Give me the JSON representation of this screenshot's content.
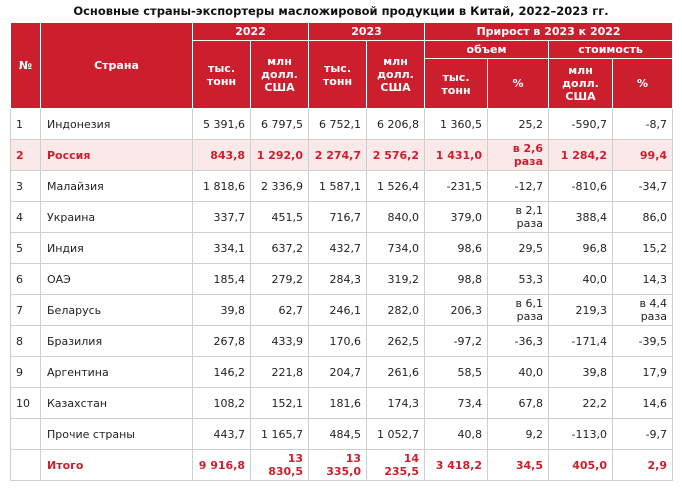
{
  "title": "Основные страны-экспортеры масложировой продукции в Китай, 2022–2023 гг.",
  "header": {
    "num": "№",
    "country": "Страна",
    "y2022": "2022",
    "y2023": "2023",
    "growth": "Прирост в 2023 к 2022",
    "volume": "объем",
    "cost": "стоимость",
    "units": [
      "тыс. тонн",
      "млн долл. США",
      "тыс. тонн",
      "млн долл. США",
      "тыс. тонн",
      "%",
      "млн долл. США",
      "%"
    ]
  },
  "rows": [
    {
      "n": "1",
      "country": "Индонезия",
      "cells": [
        "5 391,6",
        "6 797,5",
        "6 752,1",
        "6 206,8",
        "1 360,5",
        "25,2",
        "-590,7",
        "-8,7"
      ]
    },
    {
      "n": "2",
      "country": "Россия",
      "cells": [
        "843,8",
        "1 292,0",
        "2 274,7",
        "2 576,2",
        "1 431,0",
        "в 2,6 раза",
        "1 284,2",
        "99,4"
      ]
    },
    {
      "n": "3",
      "country": "Малайзия",
      "cells": [
        "1 818,6",
        "2 336,9",
        "1 587,1",
        "1 526,4",
        "-231,5",
        "-12,7",
        "-810,6",
        "-34,7"
      ]
    },
    {
      "n": "4",
      "country": "Украина",
      "cells": [
        "337,7",
        "451,5",
        "716,7",
        "840,0",
        "379,0",
        "в 2,1 раза",
        "388,4",
        "86,0"
      ]
    },
    {
      "n": "5",
      "country": "Индия",
      "cells": [
        "334,1",
        "637,2",
        "432,7",
        "734,0",
        "98,6",
        "29,5",
        "96,8",
        "15,2"
      ]
    },
    {
      "n": "6",
      "country": "ОАЭ",
      "cells": [
        "185,4",
        "279,2",
        "284,3",
        "319,2",
        "98,8",
        "53,3",
        "40,0",
        "14,3"
      ]
    },
    {
      "n": "7",
      "country": "Беларусь",
      "cells": [
        "39,8",
        "62,7",
        "246,1",
        "282,0",
        "206,3",
        "в 6,1 раза",
        "219,3",
        "в 4,4 раза"
      ]
    },
    {
      "n": "8",
      "country": "Бразилия",
      "cells": [
        "267,8",
        "433,9",
        "170,6",
        "262,5",
        "-97,2",
        "-36,3",
        "-171,4",
        "-39,5"
      ]
    },
    {
      "n": "9",
      "country": "Аргентина",
      "cells": [
        "146,2",
        "221,8",
        "204,7",
        "261,6",
        "58,5",
        "40,0",
        "39,8",
        "17,9"
      ]
    },
    {
      "n": "10",
      "country": "Казахстан",
      "cells": [
        "108,2",
        "152,1",
        "181,6",
        "174,3",
        "73,4",
        "67,8",
        "22,2",
        "14,6"
      ]
    },
    {
      "country": "Прочие страны",
      "cells": [
        "443,7",
        "1 165,7",
        "484,5",
        "1 052,7",
        "40,8",
        "9,2",
        "-113,0",
        "-9,7"
      ]
    },
    {
      "country": "Итого",
      "cells": [
        "9 916,8",
        "13 830,5",
        "13 335,0",
        "14 235,5",
        "3 418,2",
        "34,5",
        "405,0",
        "2,9"
      ]
    }
  ]
}
